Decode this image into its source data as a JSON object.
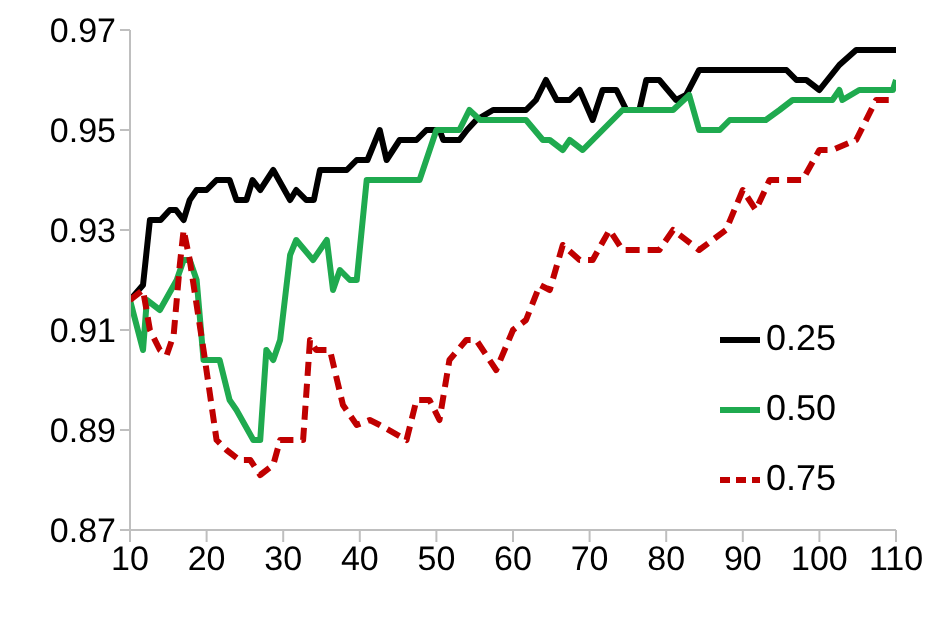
{
  "chart_data": {
    "type": "line",
    "xlim": [
      10,
      110
    ],
    "xticks": [
      10,
      20,
      30,
      40,
      50,
      60,
      70,
      80,
      90,
      100,
      110
    ],
    "ylim": [
      0.87,
      0.97
    ],
    "yticks": [
      0.87,
      0.89,
      0.91,
      0.93,
      0.95,
      0.97
    ],
    "grid": false,
    "legend": "bottom right",
    "marker": "none",
    "series": [
      {
        "name": "0.25",
        "color": "#000000",
        "line_style": "solid",
        "x": [
          10,
          11.7,
          12.6,
          14,
          15.2,
          16,
          17,
          17.8,
          18.7,
          20,
          21.3,
          23,
          23.9,
          25.2,
          26,
          27,
          28.7,
          30.9,
          31.7,
          33,
          34,
          34.8,
          38.3,
          39.6,
          41,
          42.6,
          43.5,
          45.2,
          47.4,
          48.7,
          50.4,
          50.9,
          53,
          54,
          55.2,
          57.4,
          61.7,
          63,
          64.3,
          65.7,
          67.4,
          68.7,
          70.4,
          71.7,
          73.5,
          74.8,
          76.5,
          77.4,
          79.1,
          81.3,
          82.6,
          84.3,
          95.7,
          97,
          98.3,
          100,
          102.6,
          104.8,
          110
        ],
        "values": [
          0.916,
          0.919,
          0.932,
          0.932,
          0.934,
          0.934,
          0.932,
          0.936,
          0.938,
          0.938,
          0.94,
          0.94,
          0.936,
          0.936,
          0.94,
          0.938,
          0.942,
          0.936,
          0.938,
          0.936,
          0.936,
          0.942,
          0.942,
          0.944,
          0.944,
          0.95,
          0.944,
          0.948,
          0.948,
          0.95,
          0.95,
          0.948,
          0.948,
          0.95,
          0.952,
          0.954,
          0.954,
          0.956,
          0.96,
          0.956,
          0.956,
          0.958,
          0.952,
          0.958,
          0.958,
          0.954,
          0.954,
          0.96,
          0.96,
          0.956,
          0.957,
          0.962,
          0.962,
          0.96,
          0.96,
          0.958,
          0.963,
          0.966,
          0.966
        ]
      },
      {
        "name": "0.50",
        "color": "#1faa4f",
        "line_style": "solid",
        "x": [
          10,
          11.7,
          12.2,
          13.9,
          16.1,
          17,
          17.8,
          18.7,
          19.6,
          21.7,
          23,
          23.9,
          26.1,
          27,
          27.8,
          28.7,
          29.6,
          30.9,
          31.7,
          33.9,
          35.7,
          36.5,
          37.4,
          38.7,
          39.6,
          40.9,
          47.8,
          50,
          53,
          54.3,
          55.7,
          61.7,
          63.9,
          64.8,
          66.5,
          67.4,
          69.1,
          71.7,
          74.3,
          80.9,
          83,
          84.3,
          87,
          88.3,
          93,
          94.8,
          96.5,
          101.7,
          102.6,
          103,
          105.2,
          109.6,
          110
        ],
        "values": [
          0.916,
          0.906,
          0.916,
          0.914,
          0.92,
          0.924,
          0.924,
          0.92,
          0.904,
          0.904,
          0.896,
          0.894,
          0.888,
          0.888,
          0.906,
          0.904,
          0.908,
          0.925,
          0.928,
          0.924,
          0.928,
          0.918,
          0.922,
          0.92,
          0.92,
          0.94,
          0.94,
          0.95,
          0.95,
          0.954,
          0.952,
          0.952,
          0.948,
          0.948,
          0.946,
          0.948,
          0.946,
          0.95,
          0.954,
          0.954,
          0.957,
          0.95,
          0.95,
          0.952,
          0.952,
          0.954,
          0.956,
          0.956,
          0.958,
          0.956,
          0.958,
          0.958,
          0.96
        ]
      },
      {
        "name": "0.75",
        "color": "#c00000",
        "line_style": "dashed",
        "x": [
          10,
          11.7,
          12.6,
          13.9,
          14.8,
          15.7,
          16.5,
          17,
          17.8,
          19.6,
          21.3,
          22.6,
          24.3,
          25.7,
          27,
          28.7,
          29.6,
          32.6,
          33.5,
          34.3,
          36.1,
          37.8,
          39.6,
          41.3,
          42.6,
          46.1,
          47.4,
          49.1,
          50.4,
          51.7,
          53.9,
          55.2,
          57.8,
          60,
          61.7,
          63.5,
          64.8,
          66.5,
          68.7,
          70.4,
          72.6,
          74.3,
          79.1,
          80.9,
          84.3,
          87.8,
          90,
          91.7,
          93.5,
          97.8,
          100,
          101.7,
          104.8,
          107.4,
          110
        ],
        "values": [
          0.916,
          0.918,
          0.91,
          0.906,
          0.905,
          0.909,
          0.923,
          0.93,
          0.924,
          0.906,
          0.888,
          0.886,
          0.884,
          0.884,
          0.881,
          0.883,
          0.888,
          0.888,
          0.908,
          0.906,
          0.906,
          0.895,
          0.891,
          0.892,
          0.891,
          0.888,
          0.896,
          0.896,
          0.892,
          0.904,
          0.908,
          0.908,
          0.902,
          0.91,
          0.912,
          0.919,
          0.918,
          0.927,
          0.924,
          0.924,
          0.93,
          0.926,
          0.926,
          0.93,
          0.926,
          0.93,
          0.938,
          0.934,
          0.94,
          0.94,
          0.946,
          0.946,
          0.948,
          0.956,
          0.956
        ]
      }
    ]
  }
}
